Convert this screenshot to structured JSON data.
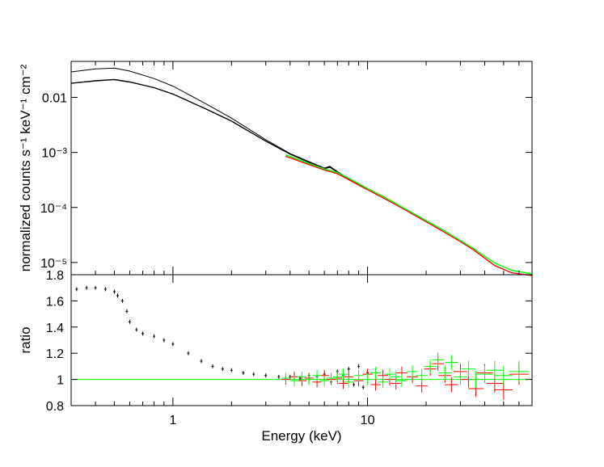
{
  "chart_data": [
    {
      "type": "line",
      "panel": "spectrum",
      "title": "",
      "xlabel": "",
      "ylabel": "normalized counts s⁻¹ keV⁻¹ cm⁻²",
      "xscale": "log",
      "yscale": "log",
      "xlim": [
        0.3,
        70
      ],
      "ylim": [
        6e-06,
        0.045
      ],
      "y_ticks": [
        {
          "value": 0.01,
          "label": "0.01"
        },
        {
          "value": 0.001,
          "label": "10⁻³"
        },
        {
          "value": 0.0001,
          "label": "10⁻⁴"
        },
        {
          "value": 1e-05,
          "label": "10⁻⁵"
        }
      ],
      "grid": false,
      "series": [
        {
          "color": "#000000",
          "x": [
            0.3,
            0.4,
            0.5,
            0.6,
            0.8,
            1.0,
            1.5,
            2.0,
            3.0,
            4.0,
            5.0,
            6.0,
            6.4,
            7.0,
            8.0,
            10.0
          ],
          "y": [
            0.029,
            0.033,
            0.034,
            0.03,
            0.022,
            0.016,
            0.0074,
            0.0042,
            0.0017,
            0.00095,
            0.00068,
            0.00052,
            0.00056,
            0.00045,
            0.00033,
            0.00022
          ]
        },
        {
          "color": "#000000",
          "x": [
            0.3,
            0.4,
            0.5,
            0.6,
            0.8,
            1.0,
            1.5,
            2.0,
            3.0,
            4.0,
            5.0,
            6.0,
            6.4,
            7.0,
            8.0,
            10.0
          ],
          "y": [
            0.018,
            0.02,
            0.021,
            0.019,
            0.015,
            0.0115,
            0.006,
            0.0037,
            0.0016,
            0.00093,
            0.00066,
            0.00051,
            0.00054,
            0.00044,
            0.00032,
            0.00021
          ]
        },
        {
          "color": "#ff0000",
          "x": [
            3.8,
            5.0,
            6.0,
            7.0,
            8.0,
            10.0,
            12.0,
            15.0,
            20.0,
            25.0,
            30.0,
            35.0,
            40.0,
            45.0,
            55.0,
            70.0
          ],
          "y": [
            0.00085,
            0.0006,
            0.00048,
            0.00041,
            0.00032,
            0.00021,
            0.00015,
            9.8e-05,
            5.5e-05,
            3.5e-05,
            2.4e-05,
            1.7e-05,
            1.2e-05,
            8.8e-06,
            6.5e-06,
            5.8e-06
          ]
        },
        {
          "color": "#00ff00",
          "x": [
            3.8,
            5.0,
            6.0,
            7.0,
            8.0,
            10.0,
            12.0,
            15.0,
            20.0,
            25.0,
            30.0,
            35.0,
            40.0,
            45.0,
            55.0,
            70.0
          ],
          "y": [
            0.0009,
            0.00063,
            0.0005,
            0.00043,
            0.00034,
            0.00022,
            0.00016,
            0.000102,
            5.8e-05,
            3.7e-05,
            2.5e-05,
            1.8e-05,
            1.3e-05,
            9.8e-06,
            7.2e-06,
            6.2e-06
          ]
        }
      ]
    },
    {
      "type": "scatter",
      "panel": "ratio",
      "title": "",
      "xlabel": "Energy (keV)",
      "ylabel": "ratio",
      "xscale": "log",
      "xlim": [
        0.3,
        70
      ],
      "ylim": [
        0.8,
        1.8
      ],
      "x_ticks": [
        {
          "value": 1,
          "label": "1"
        },
        {
          "value": 10,
          "label": "10"
        }
      ],
      "y_ticks": [
        {
          "value": 0.8,
          "label": "0.8"
        },
        {
          "value": 1.0,
          "label": "1"
        },
        {
          "value": 1.2,
          "label": "1.2"
        },
        {
          "value": 1.4,
          "label": "1.4"
        },
        {
          "value": 1.6,
          "label": "1.6"
        },
        {
          "value": 1.8,
          "label": "1.8"
        }
      ],
      "grid": false,
      "reference_line": {
        "y": 1.0,
        "color": "#00ff00"
      },
      "series": [
        {
          "color": "#000000",
          "x": [
            0.32,
            0.36,
            0.4,
            0.45,
            0.5,
            0.52,
            0.55,
            0.58,
            0.6,
            0.65,
            0.7,
            0.8,
            0.9,
            1.0,
            1.2,
            1.4,
            1.6,
            1.8,
            2.0,
            2.3,
            2.6,
            3.0,
            3.5,
            4.0,
            4.5,
            5.0,
            5.5,
            6.0,
            6.5,
            7.0,
            7.5,
            8.0,
            8.5,
            9.0,
            9.5,
            10.0
          ],
          "y": [
            1.69,
            1.7,
            1.7,
            1.69,
            1.67,
            1.64,
            1.6,
            1.52,
            1.44,
            1.38,
            1.35,
            1.33,
            1.3,
            1.27,
            1.2,
            1.14,
            1.1,
            1.08,
            1.07,
            1.05,
            1.04,
            1.03,
            1.02,
            1.02,
            1.01,
            1.03,
            1.02,
            1.04,
            0.98,
            1.06,
            1.03,
            1.08,
            0.96,
            1.1,
            0.94,
            1.05
          ]
        },
        {
          "color": "#ff0000",
          "x": [
            3.8,
            4.2,
            4.6,
            5.0,
            5.5,
            6.0,
            6.5,
            7.0,
            7.5,
            8.0,
            9.0,
            10.0,
            11.0,
            12.0,
            13.0,
            14.0,
            15.0,
            17.0,
            19.0,
            21.0,
            23.0,
            25.0,
            27.0,
            30.0,
            33.0,
            36.0,
            40.0,
            45.0,
            50.0,
            60.0
          ],
          "y": [
            1.0,
            1.02,
            0.99,
            1.01,
            0.98,
            1.03,
            1.0,
            1.01,
            0.97,
            1.02,
            0.99,
            1.04,
            0.96,
            1.03,
            1.0,
            0.97,
            1.05,
            1.02,
            0.95,
            1.08,
            1.12,
            1.03,
            0.96,
            1.06,
            1.0,
            0.93,
            1.05,
            0.97,
            0.92,
            1.04
          ]
        },
        {
          "color": "#00ff00",
          "x": [
            3.8,
            4.2,
            4.6,
            5.0,
            5.5,
            6.0,
            6.5,
            7.0,
            7.5,
            8.0,
            9.0,
            10.0,
            11.0,
            12.0,
            13.0,
            14.0,
            15.0,
            17.0,
            19.0,
            21.0,
            23.0,
            25.0,
            27.0,
            30.0,
            33.0,
            36.0,
            40.0,
            45.0,
            50.0,
            60.0
          ],
          "y": [
            1.01,
            0.99,
            1.02,
            1.0,
            1.03,
            0.99,
            1.01,
            1.02,
            1.04,
            0.98,
            1.03,
            1.0,
            1.05,
            0.98,
            1.04,
            1.02,
            0.99,
            1.06,
            1.03,
            1.1,
            1.15,
            1.05,
            1.13,
            1.02,
            1.08,
            1.0,
            1.04,
            1.07,
            1.03,
            1.06
          ]
        }
      ]
    }
  ]
}
